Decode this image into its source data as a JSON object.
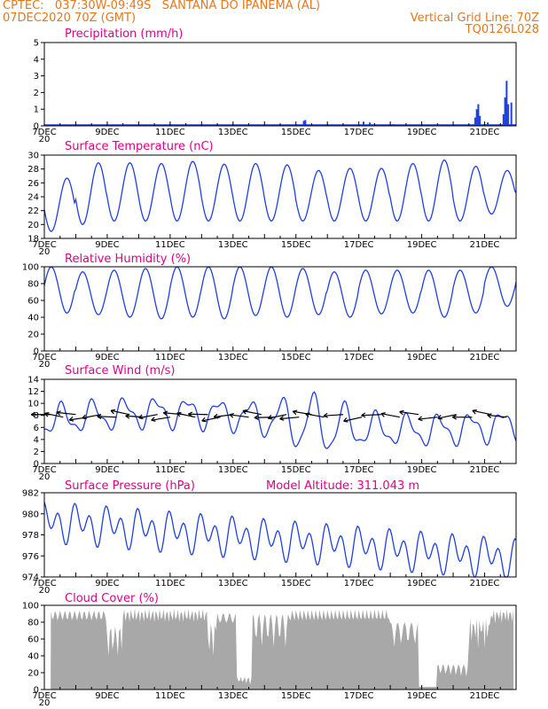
{
  "header": {
    "line1_left": "CPTEC:   037:30W-09:49S   SANTANA DO IPANEMA (AL)",
    "line2_left": "07DEC2020 70Z (GMT)",
    "line2_right": "Vertical Grid Line: 70Z",
    "line3_right": "TQ0126L028"
  },
  "x_axis": {
    "labels": [
      "7DEC",
      "9DEC",
      "11DEC",
      "13DEC",
      "15DEC",
      "17DEC",
      "19DEC",
      "21DEC"
    ],
    "label_days": [
      0,
      2,
      4,
      6,
      8,
      10,
      12,
      14
    ],
    "underflow": "20"
  },
  "colors": {
    "line": "#2040e0",
    "title": "#e0008a",
    "header": "#e8771b",
    "cloud": "#a8a8a8",
    "wind_arrow": "#000000"
  },
  "chart_data": [
    {
      "id": "precip",
      "type": "bar",
      "title": "Precipitation (mm/h)",
      "xlabel": "",
      "ylabel": "",
      "ylim": [
        0,
        5
      ],
      "yticks": [
        0,
        1,
        2,
        3,
        4,
        5
      ],
      "x_unit": "days since 07DEC 00Z",
      "bars": [
        {
          "x": 8.25,
          "y": 0.3
        },
        {
          "x": 8.3,
          "y": 0.35
        },
        {
          "x": 10.15,
          "y": 0.25
        },
        {
          "x": 10.35,
          "y": 0.2
        },
        {
          "x": 11.1,
          "y": 0.1
        },
        {
          "x": 13.7,
          "y": 0.5
        },
        {
          "x": 13.75,
          "y": 1.0
        },
        {
          "x": 13.8,
          "y": 1.3
        },
        {
          "x": 13.85,
          "y": 0.6
        },
        {
          "x": 14.0,
          "y": 0.1
        },
        {
          "x": 14.1,
          "y": 0.2
        },
        {
          "x": 14.6,
          "y": 0.7
        },
        {
          "x": 14.65,
          "y": 1.7
        },
        {
          "x": 14.7,
          "y": 2.7
        },
        {
          "x": 14.75,
          "y": 1.3
        },
        {
          "x": 14.85,
          "y": 1.4
        }
      ],
      "grid": false
    },
    {
      "id": "temp",
      "type": "line",
      "title": "Surface Temperature (nC)",
      "ylim": [
        18,
        30
      ],
      "yticks": [
        18,
        20,
        22,
        24,
        26,
        28,
        30
      ],
      "diurnal": {
        "min": [
          19,
          20,
          20.5,
          20.5,
          20.5,
          20.5,
          20.5,
          20.5,
          20.5,
          20.5,
          20.5,
          20.5,
          20.5,
          20.5,
          21.5,
          22.3
        ],
        "max": [
          26.7,
          28.9,
          28.9,
          28.8,
          29.1,
          28.7,
          28.8,
          28.6,
          27.8,
          28.1,
          28.1,
          28.8,
          29.3,
          28.4,
          27.8
        ]
      },
      "grid": false
    },
    {
      "id": "rh",
      "type": "line",
      "title": "Relative Humidity (%)",
      "ylim": [
        0,
        100
      ],
      "yticks": [
        0,
        20,
        40,
        60,
        80,
        100
      ],
      "diurnal": {
        "min": [
          45,
          43,
          40,
          38,
          40,
          38,
          42,
          40,
          43,
          40,
          44,
          45,
          40,
          45,
          53,
          55
        ],
        "max": [
          100,
          94,
          96,
          98,
          100,
          100,
          100,
          100,
          98,
          94,
          96,
          96,
          96,
          96,
          100,
          100
        ]
      },
      "grid": false
    },
    {
      "id": "wind",
      "type": "line",
      "title": "Surface Wind (m/s)",
      "ylim": [
        0,
        14
      ],
      "yticks": [
        0,
        2,
        4,
        6,
        8,
        10,
        12,
        14
      ],
      "series": [
        {
          "values_hint": "wind speed with diurnal oscillation, peak ~13 near 15-16DEC"
        }
      ],
      "arrow_days": [
        0.2,
        0.6,
        1.0,
        1.4,
        1.8,
        2.3,
        2.7,
        3.2,
        3.6,
        4.0,
        4.4,
        4.8,
        5.2,
        5.6,
        6.0,
        6.5,
        6.9,
        7.3,
        7.7,
        8.1,
        8.5,
        8.9,
        9.5,
        10.1,
        10.7,
        11.3,
        11.9,
        12.5,
        13.1,
        13.6,
        14.2,
        14.7
      ],
      "grid": false
    },
    {
      "id": "press",
      "type": "line",
      "title": "Surface Pressure (hPa)",
      "subtitle": "Model Altitude: 311.043 m",
      "ylim": [
        974,
        982
      ],
      "yticks": [
        974,
        976,
        978,
        980,
        982
      ],
      "grid": false
    },
    {
      "id": "cloud",
      "type": "area",
      "title": "Cloud Cover (%)",
      "ylim": [
        0,
        100
      ],
      "yticks": [
        0,
        20,
        40,
        60,
        80,
        100
      ],
      "grid": false
    }
  ]
}
